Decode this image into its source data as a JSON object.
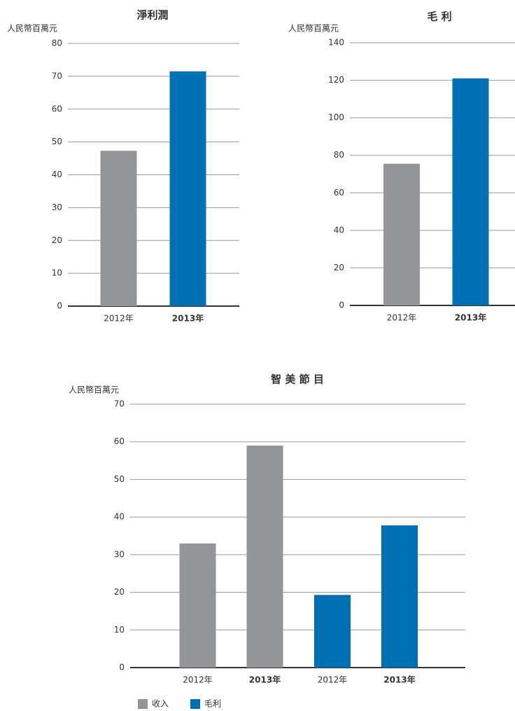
{
  "chart_data": [
    {
      "type": "bar",
      "title": "淨利潤",
      "y_label": "人民幣百萬元",
      "categories": [
        "2012年",
        "2013年"
      ],
      "values": [
        47.3,
        71.5
      ],
      "colors": [
        "#939598",
        "#0070b5"
      ],
      "ylim": [
        0,
        80
      ],
      "yticks": [
        0,
        10,
        20,
        30,
        40,
        50,
        60,
        70,
        80
      ],
      "grid": true
    },
    {
      "type": "bar",
      "title": "毛 利",
      "y_label": "人民幣百萬元",
      "categories": [
        "2012年",
        "2013年"
      ],
      "values": [
        75.5,
        121
      ],
      "colors": [
        "#939598",
        "#0070b5"
      ],
      "ylim": [
        0,
        140
      ],
      "yticks": [
        0,
        20,
        40,
        60,
        80,
        100,
        120,
        140
      ],
      "grid": true
    },
    {
      "type": "grouped_bar",
      "title": "智 美 節 目",
      "y_label": "人民幣百萬元",
      "categories": [
        "2012年",
        "2013年"
      ],
      "series": [
        {
          "name": "收入",
          "color": "#939598",
          "values": [
            33,
            59
          ]
        },
        {
          "name": "毛利",
          "color": "#0070b5",
          "values": [
            19.3,
            37.8
          ]
        }
      ],
      "ylim": [
        0,
        70
      ],
      "yticks": [
        0,
        10,
        20,
        30,
        40,
        50,
        60,
        70
      ],
      "grid": true,
      "legend": "bottom-left"
    }
  ]
}
